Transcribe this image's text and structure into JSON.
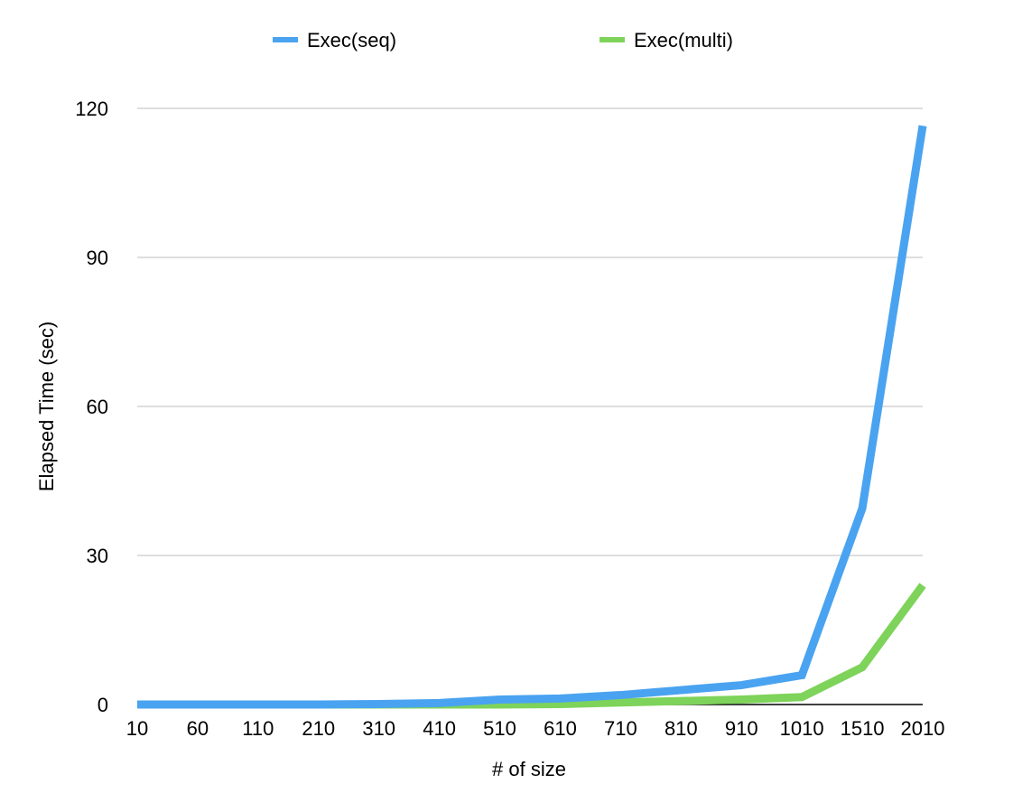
{
  "chart_data": {
    "type": "line",
    "title": "",
    "xlabel": "# of size",
    "ylabel": "Elapsed Time (sec)",
    "categories": [
      "10",
      "60",
      "110",
      "210",
      "310",
      "410",
      "510",
      "610",
      "710",
      "810",
      "910",
      "1010",
      "1510",
      "2010"
    ],
    "ylim": [
      0,
      120
    ],
    "yticks": [
      "0",
      "30",
      "60",
      "90",
      "120"
    ],
    "grid": true,
    "legend_position": "top",
    "series": [
      {
        "name": "Exec(seq)",
        "color": "#4aa3f0",
        "values": [
          0,
          0,
          0,
          0,
          0.1,
          0.3,
          1.0,
          1.2,
          1.9,
          2.9,
          3.9,
          5.9,
          39.5,
          116.5
        ]
      },
      {
        "name": "Exec(multi)",
        "color": "#7ed35a",
        "values": [
          0,
          0,
          0,
          0,
          0,
          0,
          0,
          0.1,
          0.4,
          0.7,
          1.0,
          1.5,
          7.5,
          24.0
        ]
      }
    ]
  }
}
